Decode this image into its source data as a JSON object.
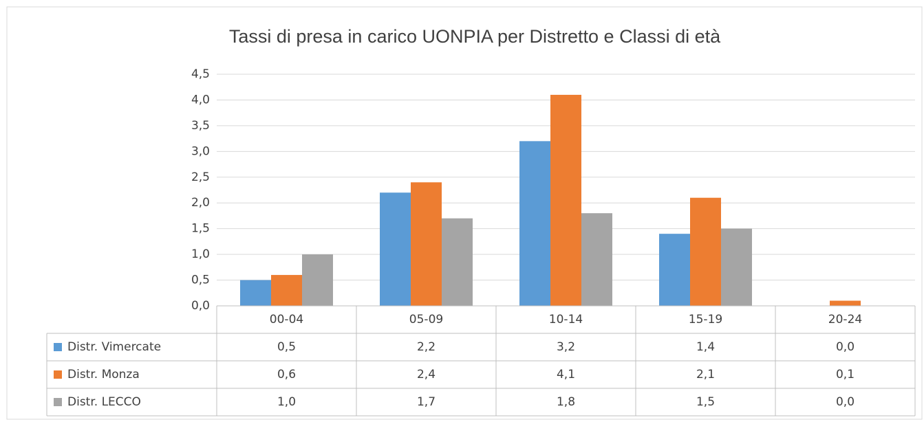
{
  "chart_data": {
    "type": "bar",
    "title": "Tassi di presa in carico UONPIA per Distretto e Classi di età",
    "categories": [
      "00-04",
      "05-09",
      "10-14",
      "15-19",
      "20-24"
    ],
    "series": [
      {
        "name": "Distr. Vimercate",
        "color": "#5b9bd5",
        "values": [
          0.5,
          2.2,
          3.2,
          1.4,
          0.0
        ],
        "value_labels": [
          "0,5",
          "2,2",
          "3,2",
          "1,4",
          "0,0"
        ]
      },
      {
        "name": "Distr. Monza",
        "color": "#ed7d31",
        "values": [
          0.6,
          2.4,
          4.1,
          2.1,
          0.1
        ],
        "value_labels": [
          "0,6",
          "2,4",
          "4,1",
          "2,1",
          "0,1"
        ]
      },
      {
        "name": "Distr. LECCO",
        "color": "#a5a5a5",
        "values": [
          1.0,
          1.7,
          1.8,
          1.5,
          0.0
        ],
        "value_labels": [
          "1,0",
          "1,7",
          "1,8",
          "1,5",
          "0,0"
        ]
      }
    ],
    "ylim": [
      0,
      4.5
    ],
    "yticks": [
      {
        "value": 0,
        "label": "0,0"
      },
      {
        "value": 0.5,
        "label": "0,5"
      },
      {
        "value": 1,
        "label": "1,0"
      },
      {
        "value": 1.5,
        "label": "1,5"
      },
      {
        "value": 2,
        "label": "2,0"
      },
      {
        "value": 2.5,
        "label": "2,5"
      },
      {
        "value": 3,
        "label": "3,0"
      },
      {
        "value": 3.5,
        "label": "3,5"
      },
      {
        "value": 4,
        "label": "4,0"
      },
      {
        "value": 4.5,
        "label": "4,5"
      }
    ],
    "grid": true
  }
}
